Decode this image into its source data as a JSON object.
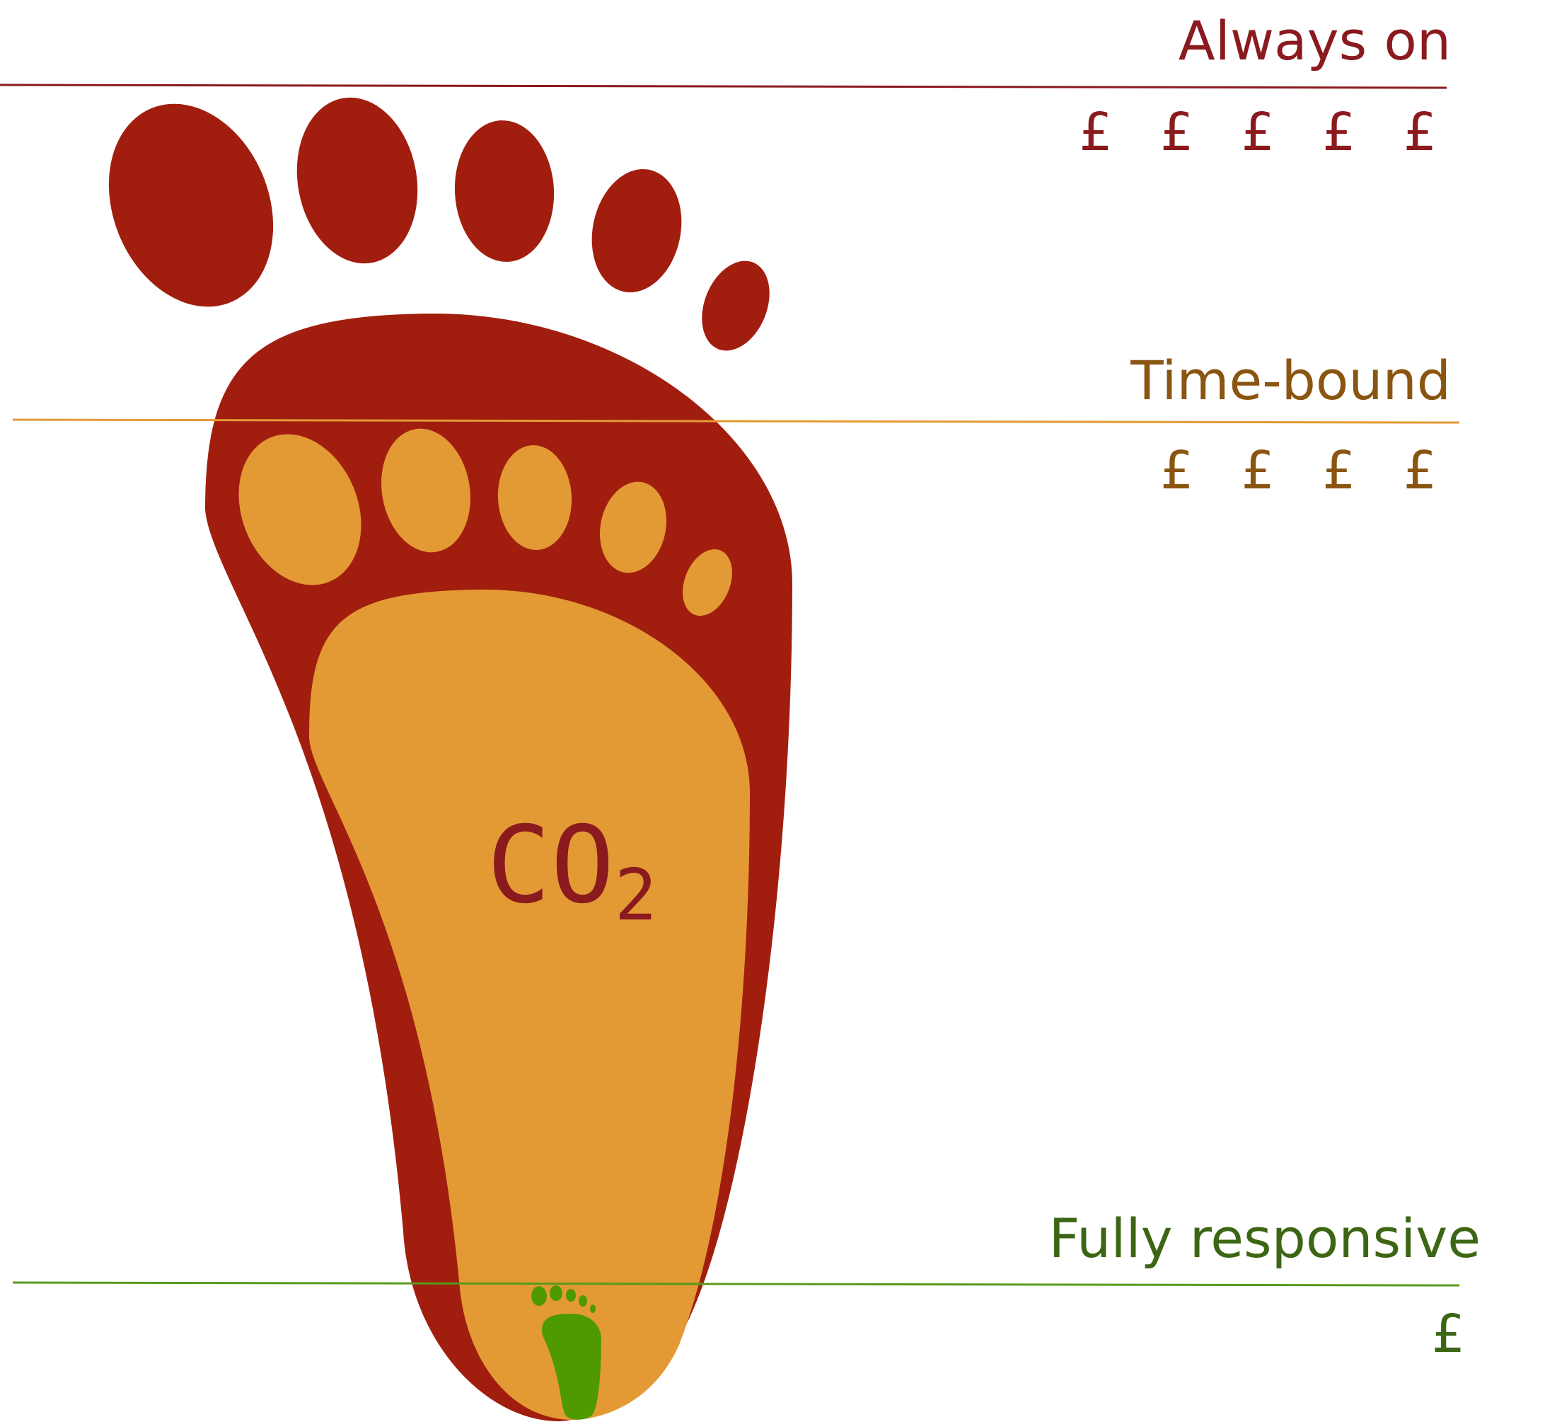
{
  "tiers": [
    {
      "name": "Always on",
      "cost": "£ £ £ £ £",
      "color": "#8a1a1e"
    },
    {
      "name": "Time-bound",
      "cost": "£ £ £ £",
      "color": "#8a5510"
    },
    {
      "name": "Fully responsive",
      "cost": "£",
      "color": "#3d6614"
    }
  ],
  "co2": {
    "main": "CO",
    "sub": "2",
    "color": "#8a1a1e"
  },
  "colors": {
    "large_foot": "#a11e0f",
    "medium_foot": "#e39a35",
    "small_foot": "#4f9a00",
    "line_always": "#8a1a1e",
    "line_time": "#e39a35",
    "line_full": "#5a9a1a"
  }
}
